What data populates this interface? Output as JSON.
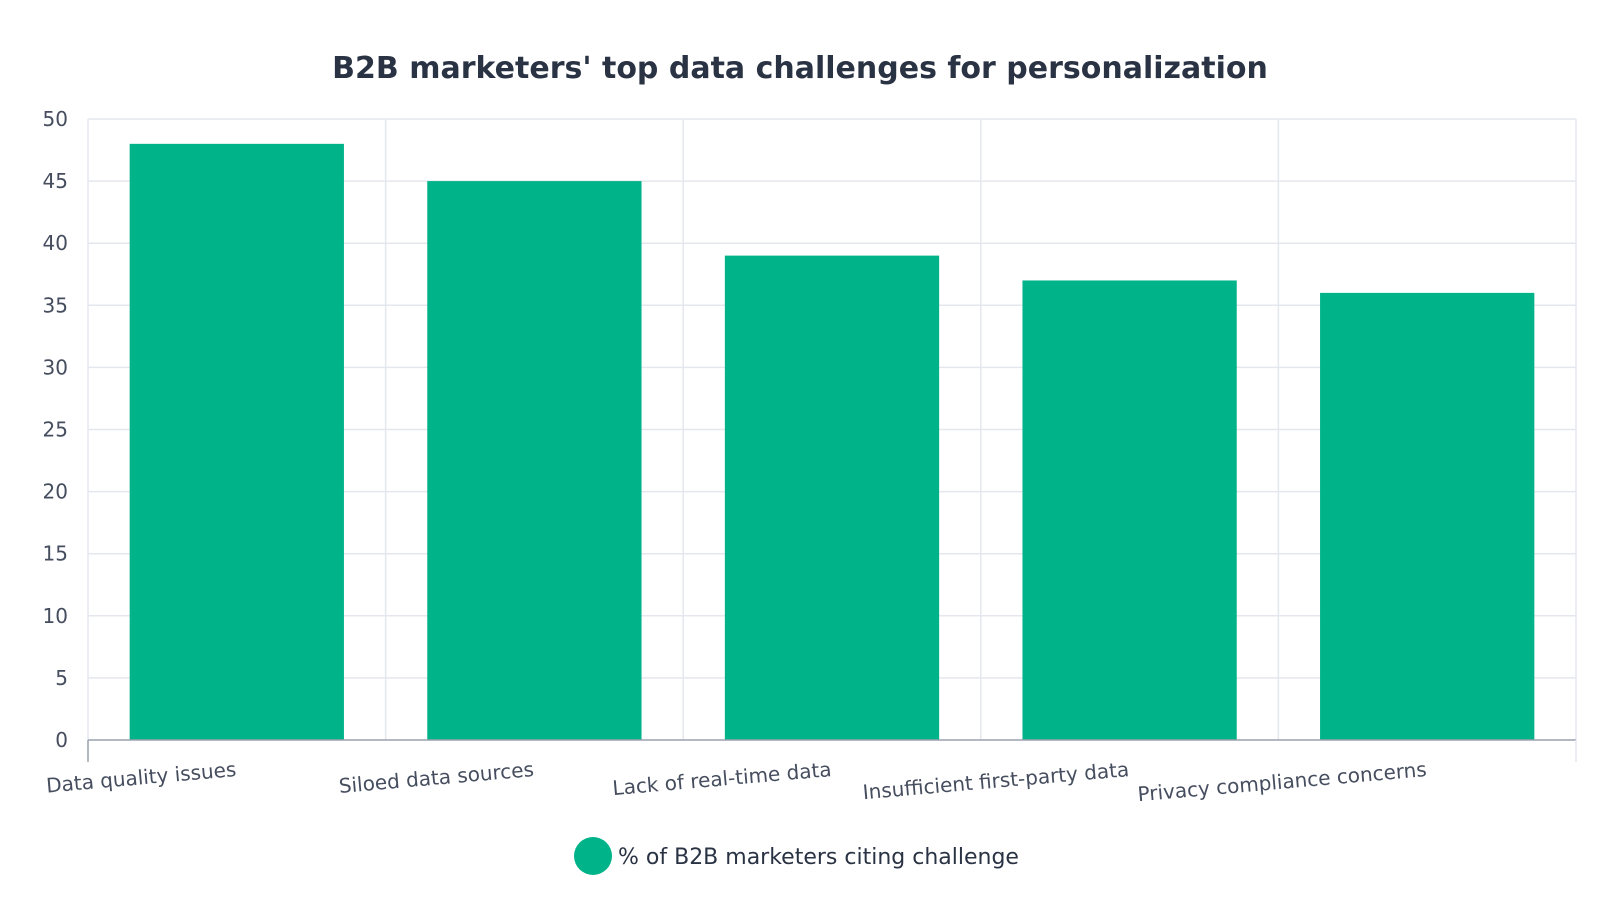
{
  "chart_data": {
    "type": "bar",
    "title": "B2B marketers' top data challenges for personalization",
    "xlabel": "",
    "ylabel": "",
    "categories": [
      "Data quality issues",
      "Siloed data sources",
      "Lack of real-time data",
      "Insufficient first-party data",
      "Privacy compliance concerns"
    ],
    "series": [
      {
        "name": "% of B2B marketers citing challenge",
        "values": [
          48,
          45,
          39,
          37,
          36
        ],
        "color": "#00b389"
      }
    ],
    "ylim": [
      0,
      50
    ],
    "yticks": [
      0,
      5,
      10,
      15,
      20,
      25,
      30,
      35,
      40,
      45,
      50
    ],
    "grid": true,
    "legend_position": "bottom-center",
    "colors": {
      "grid": "#e4e7ee",
      "axis": "#9aa0ad",
      "title": "#2a3344",
      "tick_text": "#454d5e"
    }
  }
}
